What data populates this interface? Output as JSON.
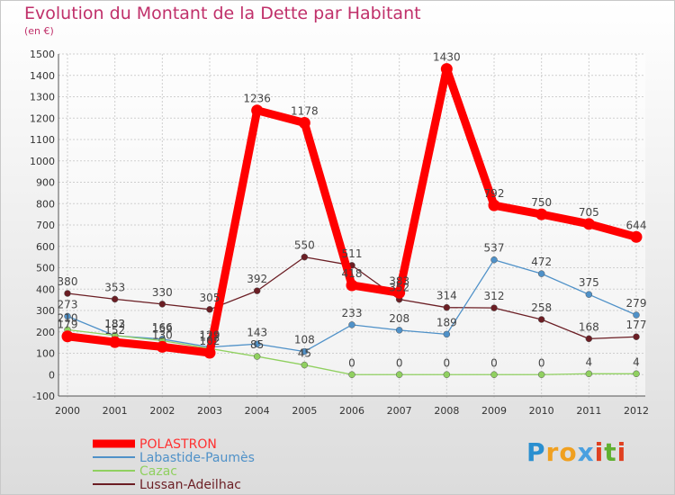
{
  "chart_data": {
    "type": "line",
    "title": "Evolution du Montant de la Dette par Habitant",
    "subtitle": "(en €)",
    "xlabel": "",
    "ylabel": "",
    "ylim": [
      -100,
      1500
    ],
    "yticks": [
      -100,
      0,
      100,
      200,
      300,
      400,
      500,
      600,
      700,
      800,
      900,
      1000,
      1100,
      1200,
      1300,
      1400,
      1500
    ],
    "grid": true,
    "legend_position": "bottom-left",
    "categories": [
      "2000",
      "2001",
      "2002",
      "2003",
      "2004",
      "2005",
      "2006",
      "2007",
      "2008",
      "2009",
      "2010",
      "2011",
      "2012"
    ],
    "series": [
      {
        "name": "POLASTRON",
        "color": "#ff0000",
        "values": [
          179,
          152,
          130,
          102,
          1236,
          1178,
          418,
          383,
          1430,
          792,
          750,
          705,
          644
        ]
      },
      {
        "name": "Labastide-Paumès",
        "color": "#4f91c8",
        "values": [
          273,
          182,
          166,
          129,
          143,
          108,
          233,
          208,
          189,
          537,
          472,
          375,
          279
        ]
      },
      {
        "name": "Cazac",
        "color": "#90d060",
        "values": [
          210,
          183,
          159,
          122,
          85,
          45,
          0,
          0,
          0,
          0,
          0,
          4,
          4
        ]
      },
      {
        "name": "Lussan-Adeilhac",
        "color": "#6b1e24",
        "values": [
          380,
          353,
          330,
          305,
          392,
          550,
          511,
          352,
          314,
          312,
          258,
          168,
          177
        ]
      }
    ]
  },
  "logo": {
    "text": "Proxiti"
  }
}
